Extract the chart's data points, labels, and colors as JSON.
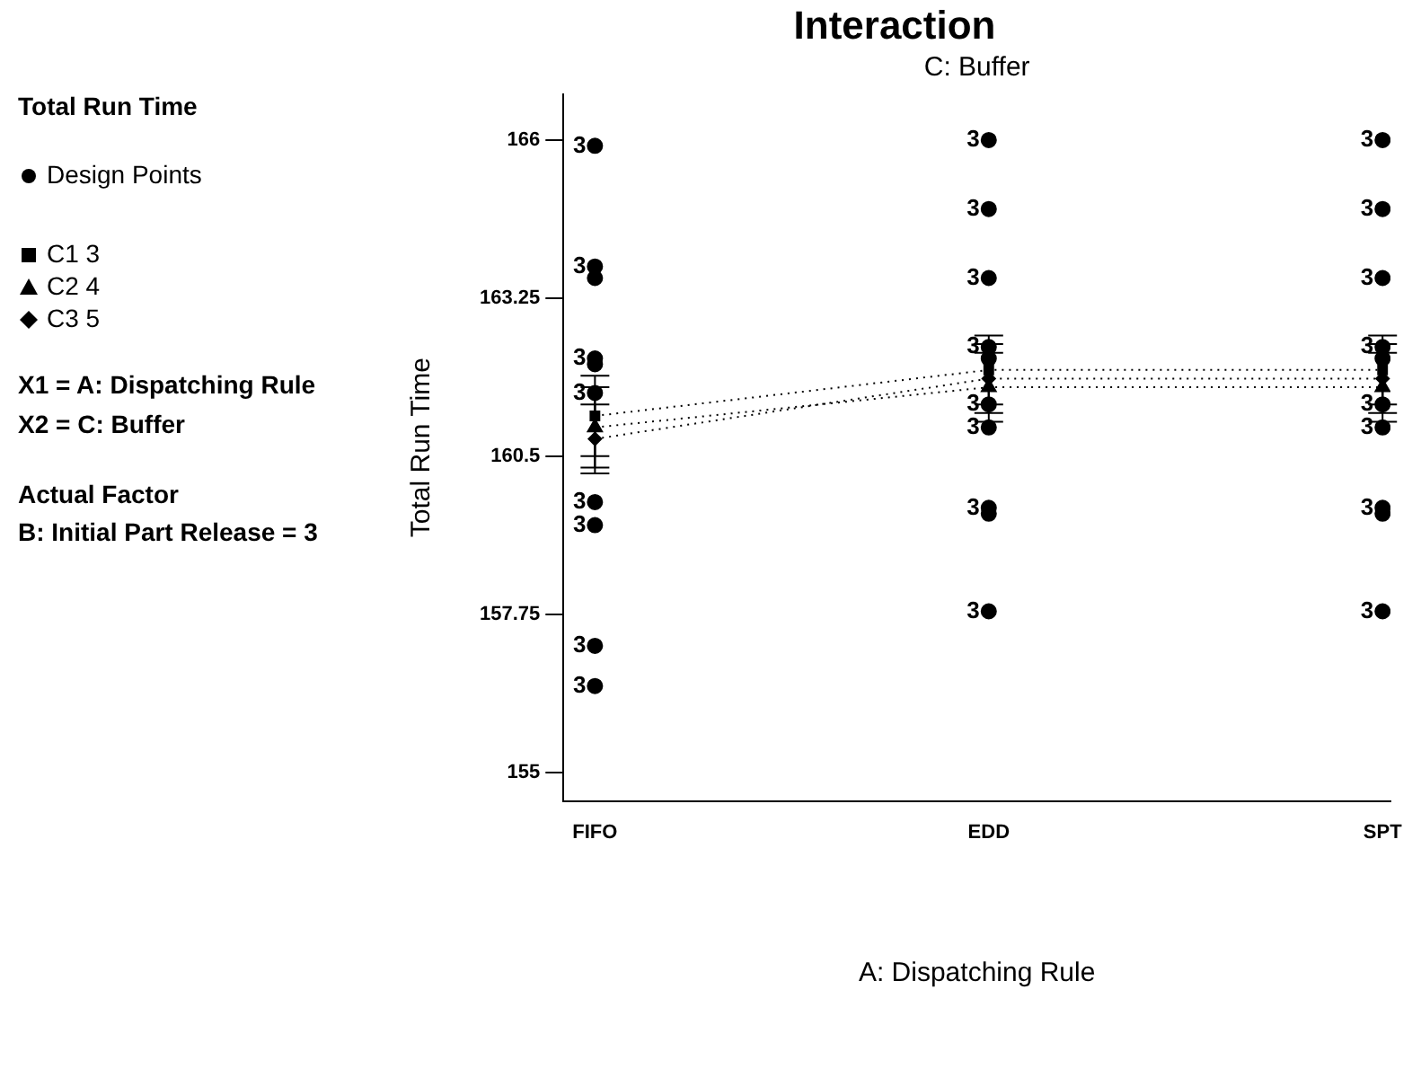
{
  "chart_data": {
    "type": "line",
    "title": "Interaction",
    "subtitle": "C: Buffer",
    "xlabel": "A: Dispatching Rule",
    "ylabel": "Total Run Time",
    "annotations": [
      "Total Run Time",
      "X1 = A: Dispatching Rule",
      "X2 = C: Buffer",
      "Actual Factor",
      "B: Initial Part Release = 3",
      {
        "text": "3",
        "x": "FIFO",
        "y": 165.9
      },
      {
        "text": "3",
        "x": "FIFO",
        "y": 163.8
      },
      {
        "text": "3",
        "x": "FIFO",
        "y": 162.2
      },
      {
        "text": "3",
        "x": "FIFO",
        "y": 161.6
      },
      {
        "text": "3",
        "x": "FIFO",
        "y": 159.7
      },
      {
        "text": "3",
        "x": "FIFO",
        "y": 159.3
      },
      {
        "text": "3",
        "x": "FIFO",
        "y": 157.2
      },
      {
        "text": "3",
        "x": "FIFO",
        "y": 156.5
      },
      {
        "text": "3",
        "x": "EDD",
        "y": 166.0
      },
      {
        "text": "3",
        "x": "EDD",
        "y": 164.8
      },
      {
        "text": "3",
        "x": "EDD",
        "y": 163.6
      },
      {
        "text": "3",
        "x": "EDD",
        "y": 162.4
      },
      {
        "text": "3",
        "x": "EDD",
        "y": 161.4
      },
      {
        "text": "3",
        "x": "EDD",
        "y": 161.0
      },
      {
        "text": "3",
        "x": "EDD",
        "y": 159.6
      },
      {
        "text": "3",
        "x": "EDD",
        "y": 157.8
      },
      {
        "text": "3",
        "x": "SPT",
        "y": 166.0
      },
      {
        "text": "3",
        "x": "SPT",
        "y": 164.8
      },
      {
        "text": "3",
        "x": "SPT",
        "y": 163.6
      },
      {
        "text": "3",
        "x": "SPT",
        "y": 162.4
      },
      {
        "text": "3",
        "x": "SPT",
        "y": 161.4
      },
      {
        "text": "3",
        "x": "SPT",
        "y": 161.0
      },
      {
        "text": "3",
        "x": "SPT",
        "y": 159.6
      },
      {
        "text": "3",
        "x": "SPT",
        "y": 157.8
      }
    ],
    "categories": [
      "FIFO",
      "EDD",
      "SPT"
    ],
    "ylim": [
      154.5,
      166.8
    ],
    "yticks": [
      155,
      157.75,
      160.5,
      163.25,
      166
    ],
    "grid": false,
    "legend": "left",
    "line_style": "dotted",
    "series": [
      {
        "name": "Design Points",
        "type": "scatter",
        "marker": "circle",
        "color": "#000000",
        "x": [
          "FIFO",
          "FIFO",
          "FIFO",
          "FIFO",
          "FIFO",
          "FIFO",
          "FIFO",
          "FIFO",
          "FIFO",
          "FIFO",
          "EDD",
          "EDD",
          "EDD",
          "EDD",
          "EDD",
          "EDD",
          "EDD",
          "EDD",
          "EDD",
          "EDD",
          "SPT",
          "SPT",
          "SPT",
          "SPT",
          "SPT",
          "SPT",
          "SPT",
          "SPT",
          "SPT",
          "SPT"
        ],
        "values": [
          165.9,
          163.8,
          163.6,
          162.2,
          162.1,
          161.6,
          159.7,
          159.3,
          157.2,
          156.5,
          166.0,
          164.8,
          163.6,
          162.4,
          162.2,
          161.4,
          161.0,
          159.6,
          159.5,
          157.8,
          166.0,
          164.8,
          163.6,
          162.4,
          162.2,
          161.4,
          161.0,
          159.6,
          159.5,
          157.8
        ]
      },
      {
        "name": "C1 3",
        "type": "line",
        "marker": "square",
        "color": "#000000",
        "values": [
          161.2,
          162.0,
          162.0
        ],
        "errors": [
          0.7,
          0.6,
          0.6
        ]
      },
      {
        "name": "C2 4",
        "type": "line",
        "marker": "triangle",
        "color": "#000000",
        "values": [
          161.0,
          161.7,
          161.7
        ],
        "errors": [
          0.7,
          0.6,
          0.6
        ]
      },
      {
        "name": "C3 5",
        "type": "line",
        "marker": "diamond",
        "color": "#000000",
        "values": [
          160.8,
          161.85,
          161.85
        ],
        "errors": [
          0.6,
          0.6,
          0.6
        ]
      }
    ]
  }
}
